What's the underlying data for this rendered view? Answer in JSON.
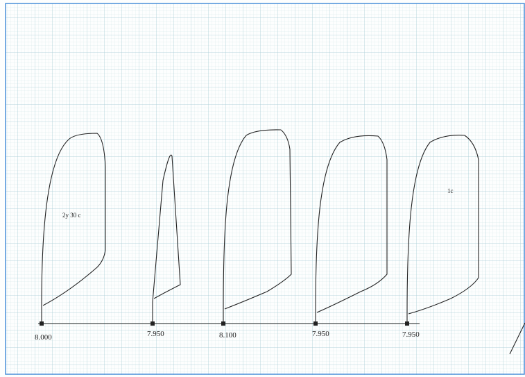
{
  "labels": [
    "8.000",
    "7.950",
    "8.100",
    "7.950",
    "7.950"
  ],
  "annotations": [
    "2y 30 c",
    "1c"
  ]
}
